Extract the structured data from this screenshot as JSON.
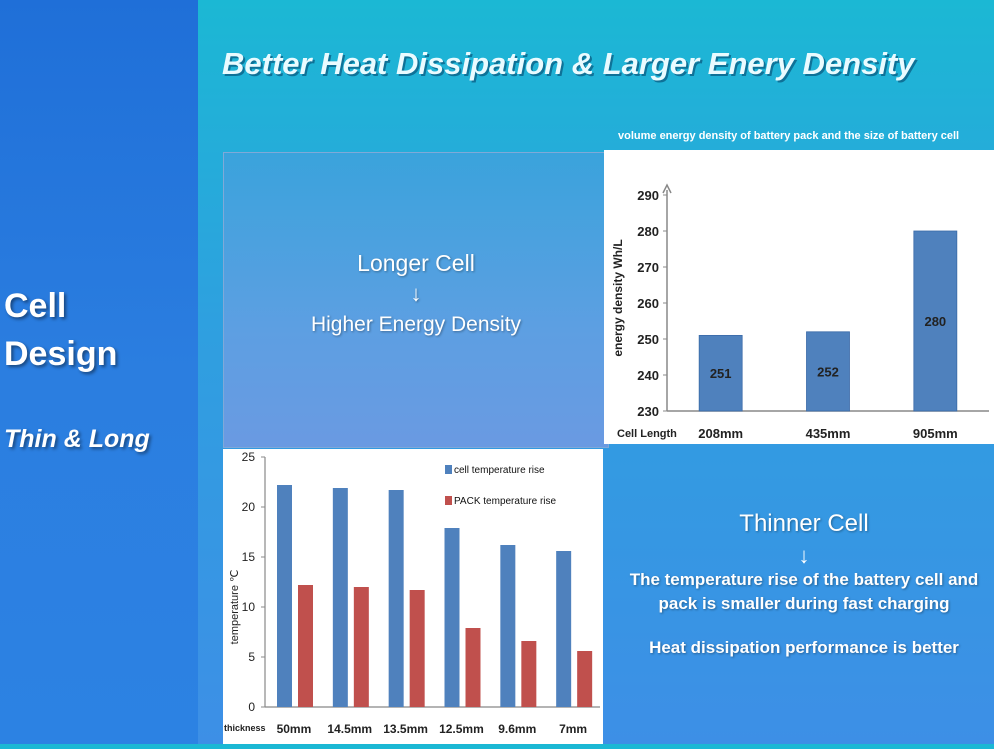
{
  "sidebar": {
    "line1": "Cell",
    "line2": "Design",
    "subtitle": "Thin & Long"
  },
  "title": "Better Heat Dissipation & Larger Enery Density",
  "longer_box": {
    "line1": "Longer Cell",
    "arrow": "↓",
    "line2": "Higher Energy Density"
  },
  "thinner": {
    "title": "Thinner Cell",
    "arrow": "↓",
    "body": "The temperature rise of the battery cell and pack is smaller during fast charging",
    "note": "Heat dissipation performance is better"
  },
  "colors": {
    "bar_blue": "#4f81bd",
    "bar_red": "#c0504d"
  },
  "chart_data": [
    {
      "type": "bar",
      "title": "volume energy density of battery pack and the size of battery cell",
      "xlabel": "Cell Length",
      "ylabel": "energy density Wh/L",
      "categories": [
        "208mm",
        "435mm",
        "905mm"
      ],
      "values": [
        251,
        252,
        280
      ],
      "value_labels": [
        "251",
        "252",
        "280"
      ],
      "ylim": [
        230,
        290
      ],
      "yticks": [
        230,
        240,
        250,
        260,
        270,
        280,
        290
      ],
      "grid": false
    },
    {
      "type": "bar",
      "xlabel": "thickness",
      "ylabel": "temperature ℃",
      "categories": [
        "50mm",
        "14.5mm",
        "13.5mm",
        "12.5mm",
        "9.6mm",
        "7mm"
      ],
      "series": [
        {
          "name": "cell temperature rise",
          "values": [
            22.2,
            21.9,
            21.7,
            17.9,
            16.2,
            15.6
          ]
        },
        {
          "name": "PACK temperature rise",
          "values": [
            12.2,
            12.0,
            11.7,
            7.9,
            6.6,
            5.6
          ]
        }
      ],
      "ylim": [
        0,
        25
      ],
      "yticks": [
        0,
        5,
        10,
        15,
        20,
        25
      ],
      "legend_position": "top-right",
      "grid": false
    }
  ]
}
